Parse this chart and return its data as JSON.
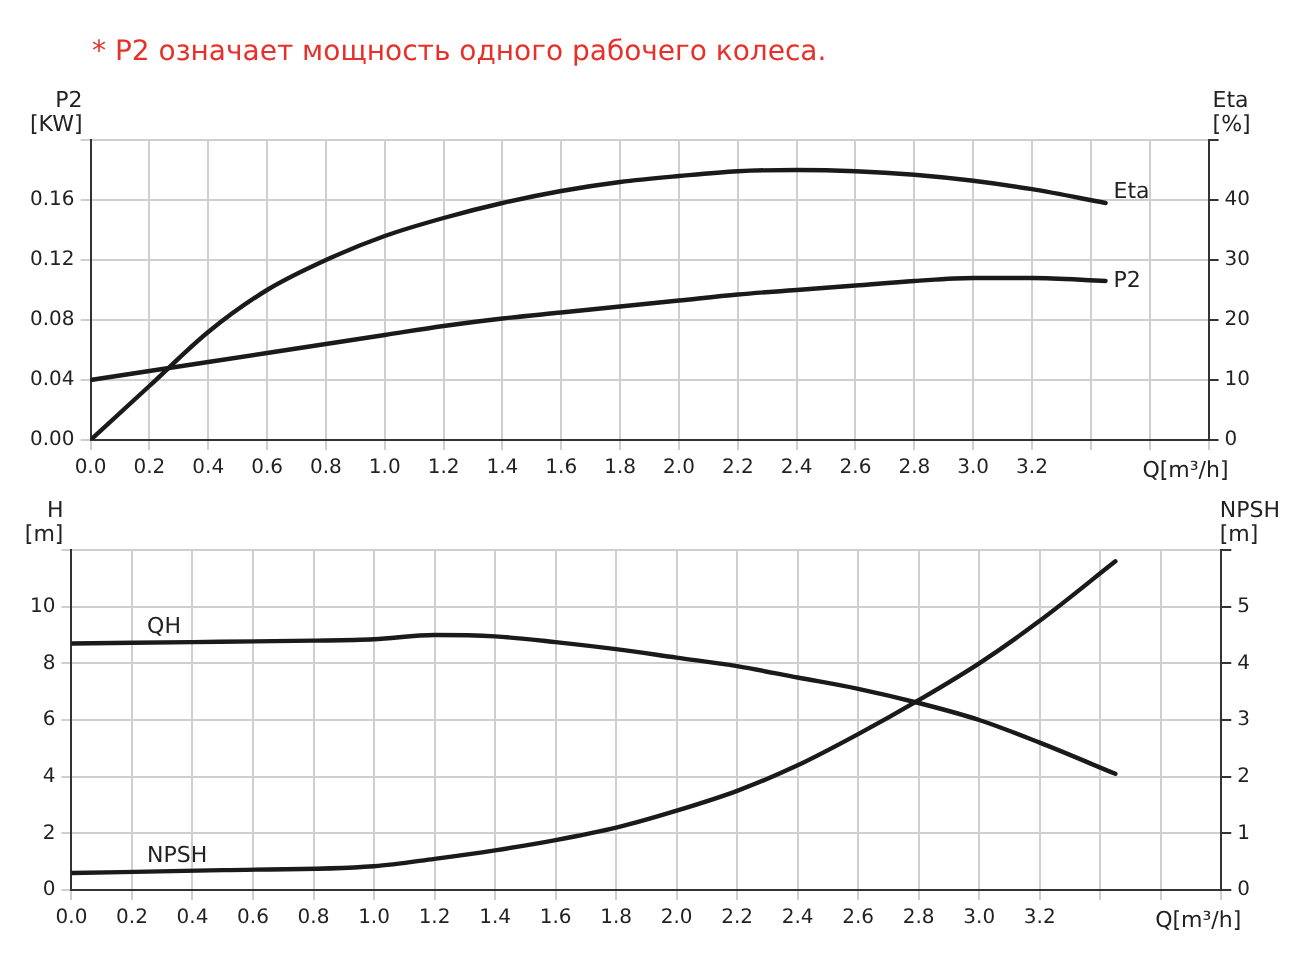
{
  "chart_data": [
    {
      "type": "line",
      "title": "* P2 означает мощность одного рабочего колеса.",
      "xlabel": "Q[m³/h]",
      "ylabel": "P2\n[KW]",
      "y2label": "Eta\n[%]",
      "xlim": [
        0,
        3.8
      ],
      "xticks": [
        {
          "value": 0,
          "label": "0.0"
        },
        {
          "value": 0.2,
          "label": "0.2"
        },
        {
          "value": 0.4,
          "label": "0.4"
        },
        {
          "value": 0.6,
          "label": "0.6"
        },
        {
          "value": 0.8,
          "label": "0.8"
        },
        {
          "value": 1,
          "label": "1.0"
        },
        {
          "value": 1.2,
          "label": "1.2"
        },
        {
          "value": 1.4,
          "label": "1.4"
        },
        {
          "value": 1.6,
          "label": "1.6"
        },
        {
          "value": 1.8,
          "label": "1.8"
        },
        {
          "value": 2,
          "label": "2.0"
        },
        {
          "value": 2.2,
          "label": "2.2"
        },
        {
          "value": 2.4,
          "label": "2.4"
        },
        {
          "value": 2.6,
          "label": "2.6"
        },
        {
          "value": 2.8,
          "label": "2.8"
        },
        {
          "value": 3,
          "label": "3.0"
        },
        {
          "value": 3.2,
          "label": "3.2"
        },
        {
          "value": 3.4,
          "label": null
        },
        {
          "value": 3.6,
          "label": null
        },
        {
          "value": 3.8,
          "label": null
        }
      ],
      "ylim": [
        0,
        0.2
      ],
      "yticks": [
        {
          "value": 0,
          "label": "0.00"
        },
        {
          "value": 0.04,
          "label": "0.04"
        },
        {
          "value": 0.08,
          "label": "0.08"
        },
        {
          "value": 0.12,
          "label": "0.12"
        },
        {
          "value": 0.16,
          "label": "0.16"
        },
        {
          "value": 0.2,
          "label": null
        }
      ],
      "y2lim": [
        0,
        50
      ],
      "y2ticks": [
        0,
        10,
        20,
        30,
        40,
        {
          "value": 50,
          "label": null
        }
      ],
      "grid": true,
      "legend": false,
      "marker": "none",
      "line_style": "solid",
      "series": [
        {
          "name": "Eta",
          "color": "#1a1a1a",
          "axis": "y2",
          "x": [
            0,
            0.2,
            0.4,
            0.6,
            0.8,
            1.0,
            1.2,
            1.4,
            1.6,
            1.8,
            2.0,
            2.2,
            2.4,
            2.6,
            2.8,
            3.0,
            3.2,
            3.45
          ],
          "values": [
            0,
            9,
            18,
            25,
            30,
            34,
            37,
            39.5,
            41.5,
            43,
            44,
            44.8,
            45,
            44.8,
            44.2,
            43.2,
            41.8,
            39.5
          ]
        },
        {
          "name": "P2",
          "color": "#1a1a1a",
          "axis": "y",
          "x": [
            0,
            0.2,
            0.4,
            0.6,
            0.8,
            1.0,
            1.2,
            1.4,
            1.6,
            1.8,
            2.0,
            2.2,
            2.4,
            2.6,
            2.8,
            3.0,
            3.2,
            3.45
          ],
          "values": [
            0.04,
            0.046,
            0.052,
            0.058,
            0.064,
            0.07,
            0.076,
            0.081,
            0.085,
            0.089,
            0.093,
            0.097,
            0.1,
            0.103,
            0.106,
            0.108,
            0.108,
            0.106
          ]
        }
      ]
    },
    {
      "type": "line",
      "xlabel": "Q[m³/h]",
      "ylabel": "H\n[m]",
      "y2label": "NPSH\n[m]",
      "xlim": [
        0,
        3.8
      ],
      "xticks": [
        {
          "value": 0,
          "label": "0.0"
        },
        {
          "value": 0.2,
          "label": "0.2"
        },
        {
          "value": 0.4,
          "label": "0.4"
        },
        {
          "value": 0.6,
          "label": "0.6"
        },
        {
          "value": 0.8,
          "label": "0.8"
        },
        {
          "value": 1,
          "label": "1.0"
        },
        {
          "value": 1.2,
          "label": "1.2"
        },
        {
          "value": 1.4,
          "label": "1.4"
        },
        {
          "value": 1.6,
          "label": "1.6"
        },
        {
          "value": 1.8,
          "label": "1.8"
        },
        {
          "value": 2,
          "label": "2.0"
        },
        {
          "value": 2.2,
          "label": "2.2"
        },
        {
          "value": 2.4,
          "label": "2.4"
        },
        {
          "value": 2.6,
          "label": "2.6"
        },
        {
          "value": 2.8,
          "label": "2.8"
        },
        {
          "value": 3,
          "label": "3.0"
        },
        {
          "value": 3.2,
          "label": "3.2"
        },
        {
          "value": 3.4,
          "label": null
        },
        {
          "value": 3.6,
          "label": null
        },
        {
          "value": 3.8,
          "label": null
        }
      ],
      "ylim": [
        0,
        12
      ],
      "yticks": [
        0,
        2,
        4,
        6,
        8,
        10,
        {
          "value": 12,
          "label": null
        }
      ],
      "y2lim": [
        0,
        6
      ],
      "y2ticks": [
        0,
        1,
        2,
        3,
        4,
        5,
        {
          "value": 6,
          "label": null
        }
      ],
      "grid": true,
      "legend": false,
      "marker": "none",
      "line_style": "solid",
      "series": [
        {
          "name": "QH",
          "color": "#1a1a1a",
          "axis": "y",
          "x": [
            0,
            0.4,
            0.8,
            1.0,
            1.2,
            1.4,
            1.6,
            1.8,
            2.0,
            2.2,
            2.4,
            2.6,
            2.8,
            3.0,
            3.2,
            3.45
          ],
          "values": [
            8.7,
            8.75,
            8.8,
            8.85,
            9.0,
            8.95,
            8.75,
            8.5,
            8.2,
            7.9,
            7.5,
            7.1,
            6.6,
            6.0,
            5.2,
            4.1
          ]
        },
        {
          "name": "NPSH",
          "color": "#1a1a1a",
          "axis": "y2",
          "x": [
            0,
            0.5,
            1.0,
            1.2,
            1.4,
            1.6,
            1.8,
            2.0,
            2.2,
            2.4,
            2.6,
            2.8,
            3.0,
            3.2,
            3.45
          ],
          "values": [
            0.3,
            0.35,
            0.42,
            0.55,
            0.7,
            0.88,
            1.1,
            1.4,
            1.75,
            2.2,
            2.75,
            3.35,
            4.0,
            4.75,
            5.8
          ]
        }
      ]
    }
  ]
}
